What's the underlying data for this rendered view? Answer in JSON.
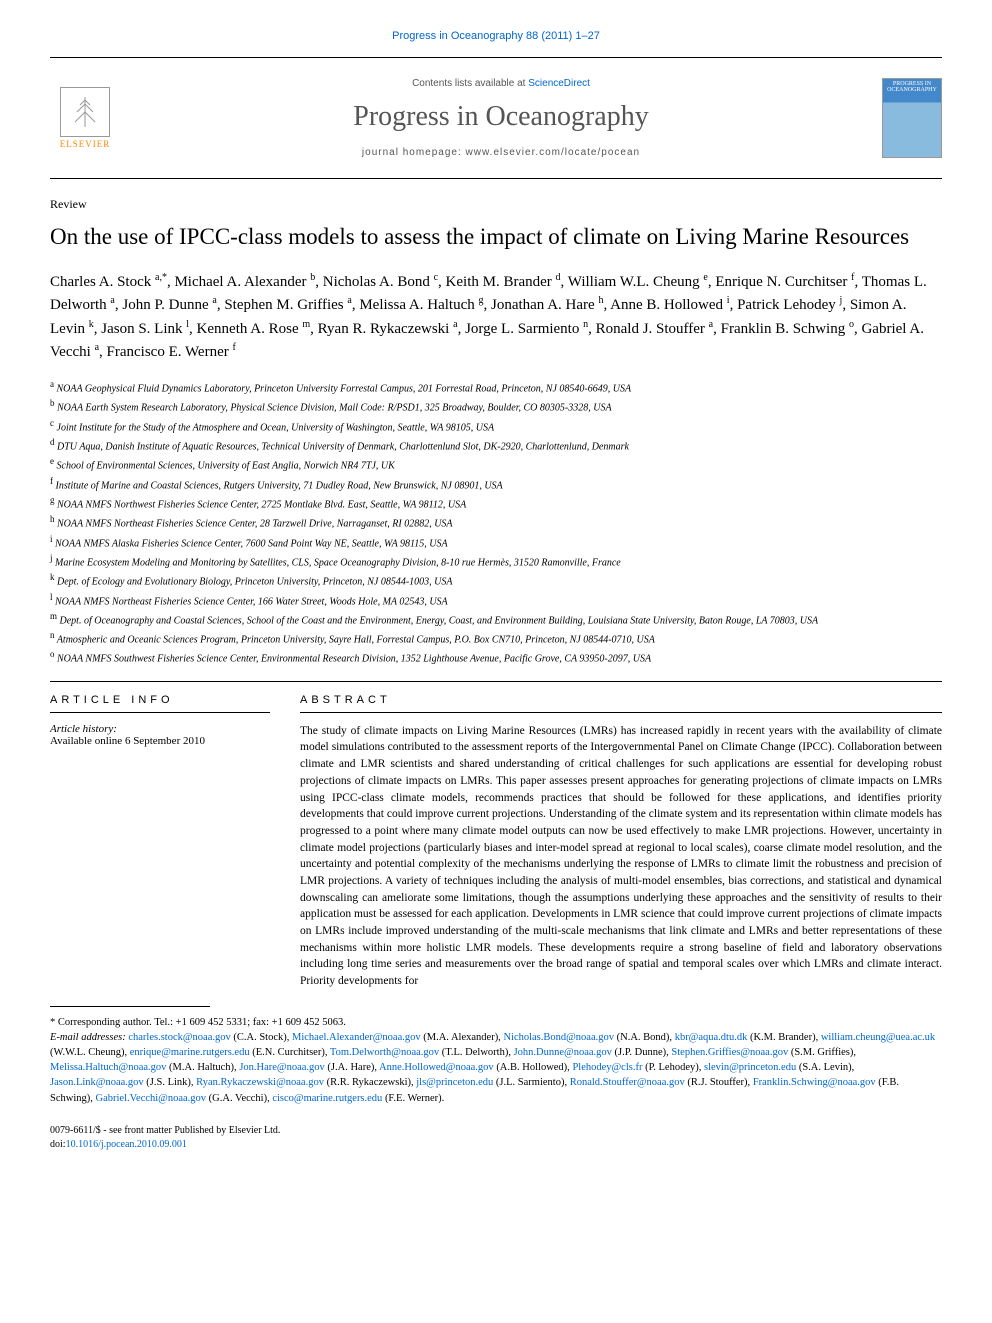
{
  "journal_header": "Progress in Oceanography 88 (2011) 1–27",
  "header": {
    "contents_prefix": "Contents lists available at ",
    "contents_link": "ScienceDirect",
    "journal_name": "Progress in Oceanography",
    "homepage_prefix": "journal homepage: ",
    "homepage_url": "www.elsevier.com/locate/pocean",
    "elsevier_label": "ELSEVIER",
    "cover_text": "PROGRESS IN OCEANOGRAPHY"
  },
  "article_type": "Review",
  "title": "On the use of IPCC-class models to assess the impact of climate on Living Marine Resources",
  "authors_html": "Charles A. Stock <sup>a,*</sup>, Michael A. Alexander <sup>b</sup>, Nicholas A. Bond <sup>c</sup>, Keith M. Brander <sup>d</sup>, William W.L. Cheung <sup>e</sup>, Enrique N. Curchitser <sup>f</sup>, Thomas L. Delworth <sup>a</sup>, John P. Dunne <sup>a</sup>, Stephen M. Griffies <sup>a</sup>, Melissa A. Haltuch <sup>g</sup>, Jonathan A. Hare <sup>h</sup>, Anne B. Hollowed <sup>i</sup>, Patrick Lehodey <sup>j</sup>, Simon A. Levin <sup>k</sup>, Jason S. Link <sup>l</sup>, Kenneth A. Rose <sup>m</sup>, Ryan R. Rykaczewski <sup>a</sup>, Jorge L. Sarmiento <sup>n</sup>, Ronald J. Stouffer <sup>a</sup>, Franklin B. Schwing <sup>o</sup>, Gabriel A. Vecchi <sup>a</sup>, Francisco E. Werner <sup>f</sup>",
  "affiliations": [
    {
      "sup": "a",
      "text": "NOAA Geophysical Fluid Dynamics Laboratory, Princeton University Forrestal Campus, 201 Forrestal Road, Princeton, NJ 08540-6649, USA"
    },
    {
      "sup": "b",
      "text": "NOAA Earth System Research Laboratory, Physical Science Division, Mail Code: R/PSD1, 325 Broadway, Boulder, CO 80305-3328, USA"
    },
    {
      "sup": "c",
      "text": "Joint Institute for the Study of the Atmosphere and Ocean, University of Washington, Seattle, WA 98105, USA"
    },
    {
      "sup": "d",
      "text": "DTU Aqua, Danish Institute of Aquatic Resources, Technical University of Denmark, Charlottenlund Slot, DK-2920, Charlottenlund, Denmark"
    },
    {
      "sup": "e",
      "text": "School of Environmental Sciences, University of East Anglia, Norwich NR4 7TJ, UK"
    },
    {
      "sup": "f",
      "text": "Institute of Marine and Coastal Sciences, Rutgers University, 71 Dudley Road, New Brunswick, NJ 08901, USA"
    },
    {
      "sup": "g",
      "text": "NOAA NMFS Northwest Fisheries Science Center, 2725 Montlake Blvd. East, Seattle, WA 98112, USA"
    },
    {
      "sup": "h",
      "text": "NOAA NMFS Northeast Fisheries Science Center, 28 Tarzwell Drive, Narraganset, RI 02882, USA"
    },
    {
      "sup": "i",
      "text": "NOAA NMFS Alaska Fisheries Science Center, 7600 Sand Point Way NE, Seattle, WA 98115, USA"
    },
    {
      "sup": "j",
      "text": "Marine Ecosystem Modeling and Monitoring by Satellites, CLS, Space Oceanography Division, 8-10 rue Hermès, 31520 Ramonville, France"
    },
    {
      "sup": "k",
      "text": "Dept. of Ecology and Evolutionary Biology, Princeton University, Princeton, NJ 08544-1003, USA"
    },
    {
      "sup": "l",
      "text": "NOAA NMFS Northeast Fisheries Science Center, 166 Water Street, Woods Hole, MA 02543, USA"
    },
    {
      "sup": "m",
      "text": "Dept. of Oceanography and Coastal Sciences, School of the Coast and the Environment, Energy, Coast, and Environment Building, Louisiana State University, Baton Rouge, LA 70803, USA"
    },
    {
      "sup": "n",
      "text": "Atmospheric and Oceanic Sciences Program, Princeton University, Sayre Hall, Forrestal Campus, P.O. Box CN710, Princeton, NJ 08544-0710, USA"
    },
    {
      "sup": "o",
      "text": "NOAA NMFS Southwest Fisheries Science Center, Environmental Research Division, 1352 Lighthouse Avenue, Pacific Grove, CA 93950-2097, USA"
    }
  ],
  "info": {
    "heading": "ARTICLE INFO",
    "history_label": "Article history:",
    "history_text": "Available online 6 September 2010"
  },
  "abstract": {
    "heading": "ABSTRACT",
    "text": "The study of climate impacts on Living Marine Resources (LMRs) has increased rapidly in recent years with the availability of climate model simulations contributed to the assessment reports of the Intergovernmental Panel on Climate Change (IPCC). Collaboration between climate and LMR scientists and shared understanding of critical challenges for such applications are essential for developing robust projections of climate impacts on LMRs. This paper assesses present approaches for generating projections of climate impacts on LMRs using IPCC-class climate models, recommends practices that should be followed for these applications, and identifies priority developments that could improve current projections. Understanding of the climate system and its representation within climate models has progressed to a point where many climate model outputs can now be used effectively to make LMR projections. However, uncertainty in climate model projections (particularly biases and inter-model spread at regional to local scales), coarse climate model resolution, and the uncertainty and potential complexity of the mechanisms underlying the response of LMRs to climate limit the robustness and precision of LMR projections. A variety of techniques including the analysis of multi-model ensembles, bias corrections, and statistical and dynamical downscaling can ameliorate some limitations, though the assumptions underlying these approaches and the sensitivity of results to their application must be assessed for each application. Developments in LMR science that could improve current projections of climate impacts on LMRs include improved understanding of the multi-scale mechanisms that link climate and LMRs and better representations of these mechanisms within more holistic LMR models. These developments require a strong baseline of field and laboratory observations including long time series and measurements over the broad range of spatial and temporal scales over which LMRs and climate interact. Priority developments for"
  },
  "corresponding": {
    "label": "* Corresponding author. Tel.: +1 609 452 5331; fax: +1 609 452 5063.",
    "email_label": "E-mail addresses: ",
    "emails_html": "<a>charles.stock@noaa.gov</a> (C.A. Stock), <a>Michael.Alexander@noaa.gov</a> (M.A. Alexander), <a>Nicholas.Bond@noaa.gov</a> (N.A. Bond), <a>kbr@aqua.dtu.dk</a> (K.M. Brander), <a>william.cheung@uea.ac.uk</a> (W.W.L. Cheung), <a>enrique@marine.rutgers.edu</a> (E.N. Curchitser), <a>Tom.Delworth@noaa.gov</a> (T.L. Delworth), <a>John.Dunne@noaa.gov</a> (J.P. Dunne), <a>Stephen.Griffies@noaa.gov</a> (S.M. Griffies), <a>Melissa.Haltuch@noaa.gov</a> (M.A. Haltuch), <a>Jon.Hare@noaa.gov</a> (J.A. Hare), <a>Anne.Hollowed@noaa.gov</a> (A.B. Hollowed), <a>Plehodey@cls.fr</a> (P. Lehodey), <a>slevin@princeton.edu</a> (S.A. Levin), <a>Jason.Link@noaa.gov</a> (J.S. Link), <a>Ryan.Rykaczewski@noaa.gov</a> (R.R. Rykaczewski), <a>jls@princeton.edu</a> (J.L. Sarmiento), <a>Ronald.Stouffer@noaa.gov</a> (R.J. Stouffer), <a>Franklin.Schwing@noaa.gov</a> (F.B. Schwing), <a>Gabriel.Vecchi@noaa.gov</a> (G.A. Vecchi), <a>cisco@marine.rutgers.edu</a> (F.E. Werner)."
  },
  "copyright": {
    "line1": "0079-6611/$ - see front matter Published by Elsevier Ltd.",
    "doi_prefix": "doi:",
    "doi": "10.1016/j.pocean.2010.09.001"
  },
  "colors": {
    "link": "#0066cc",
    "elsevier_orange": "#ff8800",
    "text": "#000000",
    "muted": "#555555"
  }
}
